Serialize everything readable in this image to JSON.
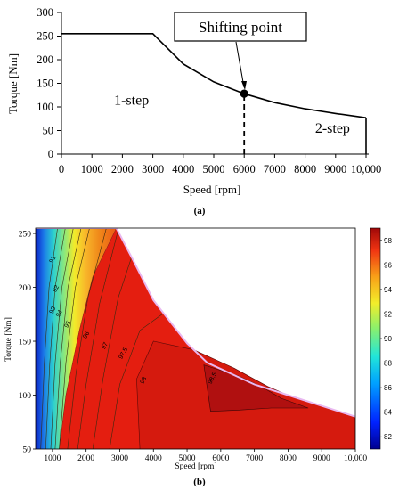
{
  "chart_data": [
    {
      "type": "line",
      "panel_label": "(a)",
      "xlabel": "Speed [rpm]",
      "ylabel": "Torque [Nm]",
      "xlim": [
        0,
        10000
      ],
      "ylim": [
        0,
        300
      ],
      "x_ticks": [
        "0",
        "1000",
        "2000",
        "3000",
        "4000",
        "5000",
        "6000",
        "7000",
        "8000",
        "9000",
        "10,000"
      ],
      "y_ticks": [
        "0",
        "50",
        "100",
        "150",
        "200",
        "250",
        "300"
      ],
      "grid": false,
      "series": [
        {
          "x": [
            0,
            3000,
            4000,
            5000,
            6000,
            7000,
            8000,
            9000,
            10000
          ],
          "y": [
            255,
            255,
            191,
            153,
            128,
            109,
            96,
            86,
            77
          ]
        }
      ],
      "vertical_line_end": {
        "x": 10000,
        "y_from": 77,
        "y_to": 0
      },
      "shifting_point": {
        "x": 6000,
        "y": 128,
        "label": "Shifting point"
      },
      "dashed_line": {
        "x": 6000,
        "y_from": 0,
        "y_to": 128
      },
      "regions": [
        {
          "label": "1-step",
          "x": 2300,
          "y": 105
        },
        {
          "label": "2-step",
          "x": 8900,
          "y": 45
        }
      ]
    },
    {
      "type": "heatmap",
      "subtype": "efficiency-contour",
      "panel_label": "(b)",
      "xlabel": "Speed [rpm]",
      "ylabel": "Torque [Nm]",
      "xlim": [
        500,
        10000
      ],
      "ylim": [
        50,
        255
      ],
      "x_ticks": [
        "1000",
        "2000",
        "3000",
        "4000",
        "5000",
        "6000",
        "7000",
        "8000",
        "9000",
        "10,000"
      ],
      "y_ticks": [
        "50",
        "100",
        "150",
        "200",
        "250"
      ],
      "colorbar": {
        "range": [
          81,
          99
        ],
        "ticks": [
          "82",
          "84",
          "86",
          "88",
          "90",
          "92",
          "94",
          "96",
          "98"
        ]
      },
      "colors": {
        "band_low": "#0a22c8",
        "band_mid": "#2bd0d0",
        "band_yellow": "#f2ea2a",
        "band_orange": "#f08a1a",
        "region_96": "#e41e10",
        "region_98": "#d51a0e",
        "region_98_5": "#b01010"
      },
      "boundary": [
        [
          500,
          255
        ],
        [
          2900,
          255
        ],
        [
          3400,
          225
        ],
        [
          4000,
          188
        ],
        [
          5000,
          148
        ],
        [
          5600,
          130
        ],
        [
          7000,
          110
        ],
        [
          8000,
          100
        ],
        [
          9000,
          90
        ],
        [
          10000,
          80
        ],
        [
          10000,
          50
        ],
        [
          500,
          50
        ]
      ],
      "contour_labels": [
        {
          "text": "91",
          "x": 1050,
          "y": 225
        },
        {
          "text": "92",
          "x": 1150,
          "y": 198
        },
        {
          "text": "93",
          "x": 1050,
          "y": 178
        },
        {
          "text": "94",
          "x": 1250,
          "y": 175
        },
        {
          "text": "95",
          "x": 1500,
          "y": 165
        },
        {
          "text": "96",
          "x": 2050,
          "y": 155
        },
        {
          "text": "97",
          "x": 2600,
          "y": 145
        },
        {
          "text": "97.5",
          "x": 3150,
          "y": 138
        },
        {
          "text": "98",
          "x": 3750,
          "y": 113
        },
        {
          "text": "98.5",
          "x": 5800,
          "y": 115
        }
      ]
    }
  ]
}
